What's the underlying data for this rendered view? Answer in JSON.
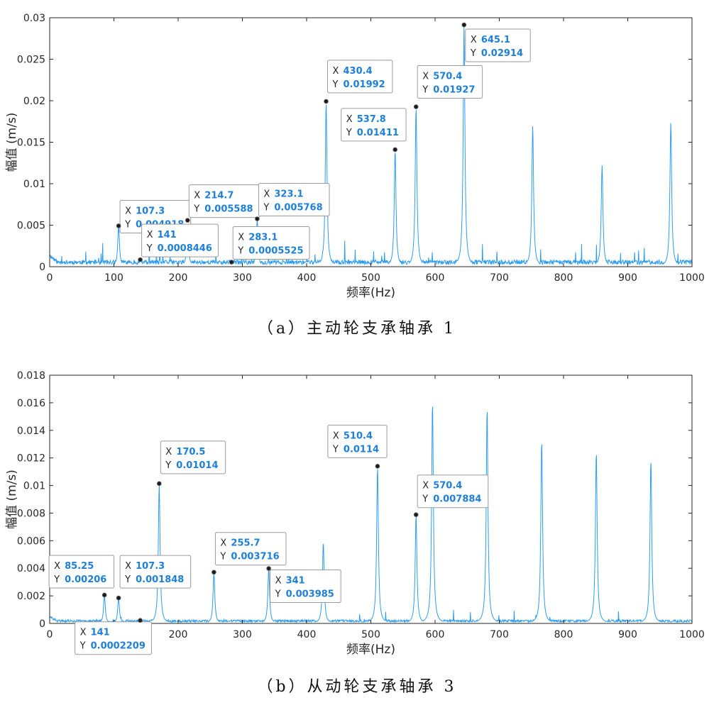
{
  "figure": {
    "captions": [
      "（a）主动轮支承轴承 1",
      "（b）从动轮支承轴承 3"
    ]
  },
  "chart_data": [
    {
      "type": "line",
      "xlabel": "频率(Hz)",
      "ylabel": "幅值 (m/s)",
      "xlim": [
        0,
        1000
      ],
      "ylim": [
        0,
        0.03
      ],
      "xticks": [
        "0",
        "100",
        "200",
        "300",
        "400",
        "500",
        "600",
        "700",
        "800",
        "900",
        "1000"
      ],
      "yticks": [
        "0",
        "0.005",
        "0.01",
        "0.015",
        "0.02",
        "0.025",
        "0.03"
      ],
      "grid": false,
      "color": "#2e9cf0",
      "baseline": 0.0006,
      "peaks": [
        {
          "x": 107.3,
          "y": 0.004918
        },
        {
          "x": 141,
          "y": 0.0008446
        },
        {
          "x": 214.7,
          "y": 0.005588
        },
        {
          "x": 283.1,
          "y": 0.0005525
        },
        {
          "x": 323.1,
          "y": 0.005768
        },
        {
          "x": 430.4,
          "y": 0.01992
        },
        {
          "x": 537.8,
          "y": 0.01411
        },
        {
          "x": 570.4,
          "y": 0.01927
        },
        {
          "x": 645.1,
          "y": 0.02914
        },
        {
          "x": 752,
          "y": 0.017
        },
        {
          "x": 860,
          "y": 0.0122
        },
        {
          "x": 967,
          "y": 0.0174
        }
      ],
      "datatips": [
        {
          "x": "107.3",
          "y": "0.004918",
          "xkey": "X",
          "ykey": "Y"
        },
        {
          "x": "141",
          "y": "0.0008446",
          "xkey": "X",
          "ykey": "Y"
        },
        {
          "x": "214.7",
          "y": "0.005588",
          "xkey": "X",
          "ykey": "Y"
        },
        {
          "x": "283.1",
          "y": "0.0005525",
          "xkey": "X",
          "ykey": "Y"
        },
        {
          "x": "323.1",
          "y": "0.005768",
          "xkey": "X",
          "ykey": "Y"
        },
        {
          "x": "430.4",
          "y": "0.01992",
          "xkey": "X",
          "ykey": "Y"
        },
        {
          "x": "537.8",
          "y": "0.01411",
          "xkey": "X",
          "ykey": "Y"
        },
        {
          "x": "570.4",
          "y": "0.01927",
          "xkey": "X",
          "ykey": "Y"
        },
        {
          "x": "645.1",
          "y": "0.02914",
          "xkey": "X",
          "ykey": "Y"
        }
      ]
    },
    {
      "type": "line",
      "xlabel": "频率(Hz)",
      "ylabel": "幅值 (m/s)",
      "xlim": [
        0,
        1000
      ],
      "ylim": [
        0,
        0.018
      ],
      "xticks": [
        "0",
        "100",
        "200",
        "300",
        "400",
        "500",
        "600",
        "700",
        "800",
        "900",
        "1000"
      ],
      "yticks": [
        "0",
        "0.002",
        "0.004",
        "0.006",
        "0.008",
        "0.01",
        "0.012",
        "0.014",
        "0.016",
        "0.018"
      ],
      "grid": false,
      "color": "#2e9cf0",
      "baseline": 0.0002,
      "peaks": [
        {
          "x": 85.25,
          "y": 0.00206
        },
        {
          "x": 107.3,
          "y": 0.001848
        },
        {
          "x": 141,
          "y": 0.0002209
        },
        {
          "x": 170.5,
          "y": 0.01014
        },
        {
          "x": 255.7,
          "y": 0.003716
        },
        {
          "x": 341,
          "y": 0.003985
        },
        {
          "x": 426,
          "y": 0.0059
        },
        {
          "x": 510.4,
          "y": 0.0114
        },
        {
          "x": 570.4,
          "y": 0.007884
        },
        {
          "x": 596,
          "y": 0.0161
        },
        {
          "x": 681,
          "y": 0.0157
        },
        {
          "x": 766,
          "y": 0.0133
        },
        {
          "x": 851,
          "y": 0.0125
        },
        {
          "x": 936,
          "y": 0.0119
        }
      ],
      "datatips": [
        {
          "x": "85.25",
          "y": "0.00206",
          "xkey": "X",
          "ykey": "Y"
        },
        {
          "x": "107.3",
          "y": "0.001848",
          "xkey": "X",
          "ykey": "Y"
        },
        {
          "x": "141",
          "y": "0.0002209",
          "xkey": "X",
          "ykey": "Y"
        },
        {
          "x": "170.5",
          "y": "0.01014",
          "xkey": "X",
          "ykey": "Y"
        },
        {
          "x": "255.7",
          "y": "0.003716",
          "xkey": "X",
          "ykey": "Y"
        },
        {
          "x": "341",
          "y": "0.003985",
          "xkey": "X",
          "ykey": "Y"
        },
        {
          "x": "510.4",
          "y": "0.0114",
          "xkey": "X",
          "ykey": "Y"
        },
        {
          "x": "570.4",
          "y": "0.007884",
          "xkey": "X",
          "ykey": "Y"
        }
      ]
    }
  ]
}
